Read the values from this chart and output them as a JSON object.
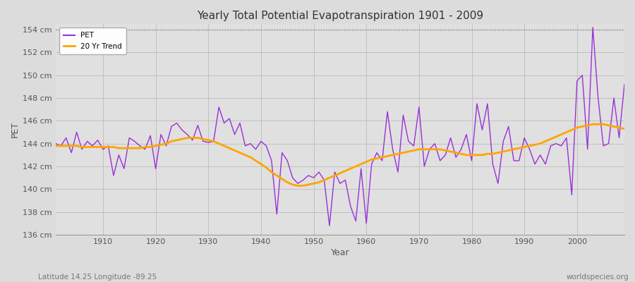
{
  "title": "Yearly Total Potential Evapotranspiration 1901 - 2009",
  "xlabel": "Year",
  "ylabel": "PET",
  "subtitle_left": "Latitude 14.25 Longitude -89.25",
  "subtitle_right": "worldspecies.org",
  "ylim": [
    136,
    154.5
  ],
  "yticks": [
    136,
    138,
    140,
    142,
    144,
    146,
    148,
    150,
    152,
    154
  ],
  "xlim": [
    1901,
    2009
  ],
  "xticks": [
    1910,
    1920,
    1930,
    1940,
    1950,
    1960,
    1970,
    1980,
    1990,
    2000
  ],
  "pet_color": "#9B30D9",
  "trend_color": "#FFA500",
  "background_color": "#E0E0E0",
  "fig_background": "#DCDCDC",
  "pet_label": "PET",
  "trend_label": "20 Yr Trend",
  "years": [
    1901,
    1902,
    1903,
    1904,
    1905,
    1906,
    1907,
    1908,
    1909,
    1910,
    1911,
    1912,
    1913,
    1914,
    1915,
    1916,
    1917,
    1918,
    1919,
    1920,
    1921,
    1922,
    1923,
    1924,
    1925,
    1926,
    1927,
    1928,
    1929,
    1930,
    1931,
    1932,
    1933,
    1934,
    1935,
    1936,
    1937,
    1938,
    1939,
    1940,
    1941,
    1942,
    1943,
    1944,
    1945,
    1946,
    1947,
    1948,
    1949,
    1950,
    1951,
    1952,
    1953,
    1954,
    1955,
    1956,
    1957,
    1958,
    1959,
    1960,
    1961,
    1962,
    1963,
    1964,
    1965,
    1966,
    1967,
    1968,
    1969,
    1970,
    1971,
    1972,
    1973,
    1974,
    1975,
    1976,
    1977,
    1978,
    1979,
    1980,
    1981,
    1982,
    1983,
    1984,
    1985,
    1986,
    1987,
    1988,
    1989,
    1990,
    1991,
    1992,
    1993,
    1994,
    1995,
    1996,
    1997,
    1998,
    1999,
    2000,
    2001,
    2002,
    2003,
    2004,
    2005,
    2006,
    2007,
    2008,
    2009
  ],
  "pet_values": [
    144.0,
    143.8,
    144.5,
    143.2,
    145.0,
    143.5,
    144.2,
    143.8,
    144.3,
    143.5,
    143.8,
    141.2,
    143.0,
    141.8,
    144.5,
    144.2,
    143.8,
    143.5,
    144.7,
    141.8,
    144.8,
    143.8,
    145.5,
    145.8,
    145.2,
    144.8,
    144.3,
    145.6,
    144.2,
    144.1,
    144.2,
    147.2,
    145.8,
    146.2,
    144.8,
    145.8,
    143.8,
    144.0,
    143.5,
    144.2,
    143.8,
    142.5,
    137.8,
    143.2,
    142.5,
    141.0,
    140.5,
    140.8,
    141.2,
    141.0,
    141.5,
    140.8,
    136.8,
    141.5,
    140.5,
    140.8,
    138.5,
    137.2,
    141.8,
    137.0,
    142.2,
    143.2,
    142.5,
    146.8,
    143.5,
    141.5,
    146.5,
    144.2,
    143.8,
    147.2,
    142.0,
    143.5,
    144.0,
    142.5,
    143.0,
    144.5,
    142.8,
    143.5,
    144.8,
    142.5,
    147.5,
    145.2,
    147.5,
    142.2,
    140.5,
    144.2,
    145.5,
    142.5,
    142.5,
    144.5,
    143.5,
    142.2,
    143.0,
    142.2,
    143.8,
    144.0,
    143.8,
    144.5,
    139.5,
    149.5,
    150.0,
    143.5,
    154.2,
    148.0,
    143.8,
    144.0,
    148.0,
    144.5,
    149.2
  ],
  "trend_values_full": [
    143.8,
    143.8,
    143.8,
    143.8,
    143.8,
    143.7,
    143.7,
    143.7,
    143.7,
    143.7,
    143.7,
    143.7,
    143.6,
    143.6,
    143.6,
    143.6,
    143.6,
    143.7,
    143.7,
    143.8,
    143.9,
    144.0,
    144.2,
    144.3,
    144.4,
    144.5,
    144.5,
    144.5,
    144.4,
    144.3,
    144.2,
    144.0,
    143.8,
    143.6,
    143.4,
    143.2,
    143.0,
    142.8,
    142.5,
    142.2,
    141.9,
    141.5,
    141.2,
    140.9,
    140.6,
    140.4,
    140.3,
    140.3,
    140.4,
    140.5,
    140.6,
    140.8,
    141.0,
    141.2,
    141.4,
    141.6,
    141.8,
    142.0,
    142.2,
    142.4,
    142.6,
    142.7,
    142.8,
    142.9,
    143.0,
    143.1,
    143.2,
    143.3,
    143.4,
    143.5,
    143.5,
    143.5,
    143.5,
    143.5,
    143.4,
    143.3,
    143.2,
    143.1,
    143.0,
    143.0,
    143.0,
    143.0,
    143.1,
    143.1,
    143.2,
    143.3,
    143.4,
    143.5,
    143.6,
    143.7,
    143.8,
    143.9,
    144.0,
    144.2,
    144.4,
    144.6,
    144.8,
    145.0,
    145.2,
    145.4,
    145.5,
    145.6,
    145.7,
    145.7,
    145.7,
    145.6,
    145.5,
    145.4,
    145.3
  ]
}
